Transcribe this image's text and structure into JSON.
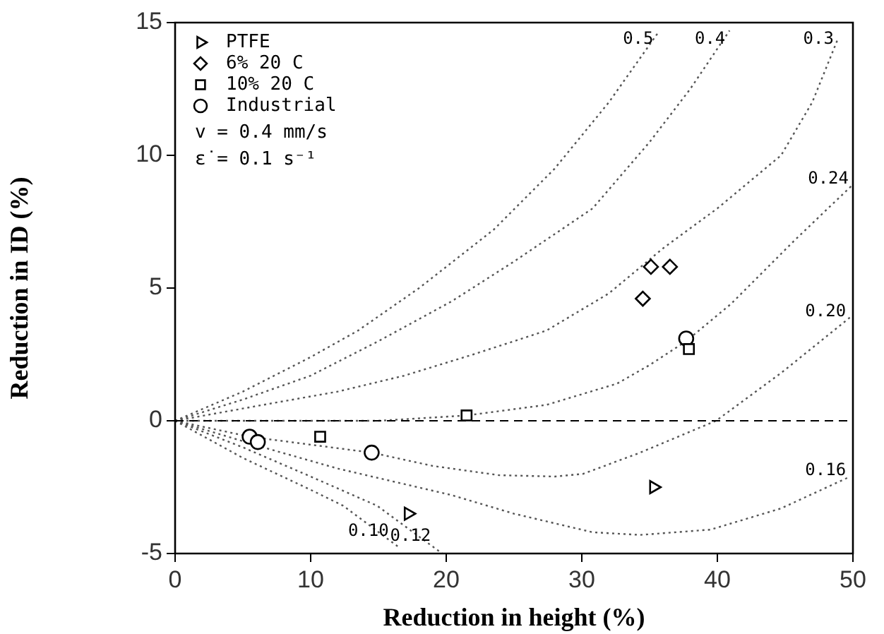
{
  "chart_data": {
    "type": "scatter",
    "xlabel": "Reduction in height (%)",
    "ylabel": "Reduction in ID (%)",
    "xlim": [
      0,
      50
    ],
    "xticks": [
      0,
      10,
      20,
      30,
      40,
      50
    ],
    "ylim": [
      -5,
      15
    ],
    "yticks": [
      -5,
      0,
      5,
      10,
      15
    ],
    "grid": false,
    "legend": "top left",
    "series": [
      {
        "name": "PTFE",
        "color": "#000000",
        "marker": "triangle",
        "x": [
          35.3,
          17.2
        ],
        "values": [
          -2.5,
          -3.5
        ]
      },
      {
        "name": "6% 20 C",
        "color": "#000000",
        "marker": "diamond",
        "x": [
          35.1,
          36.5,
          34.5
        ],
        "values": [
          5.8,
          5.8,
          4.6
        ]
      },
      {
        "name": "10% 20 C",
        "color": "#000000",
        "marker": "square",
        "x": [
          37.9,
          21.5,
          10.7
        ],
        "values": [
          2.7,
          0.2,
          -0.6
        ]
      },
      {
        "name": "Industrial",
        "color": "#000000",
        "marker": "circle",
        "x": [
          37.7,
          5.5,
          6.1,
          14.5
        ],
        "values": [
          3.1,
          -0.6,
          -0.8,
          -1.2
        ]
      },
      {
        "name": "0.5",
        "type": "line",
        "color": "#555555",
        "marker": "none",
        "line_style": "dotted",
        "x": [
          0,
          5,
          10,
          13.5,
          18,
          23.5,
          28,
          32,
          35.6
        ],
        "values": [
          0,
          1.1,
          2.4,
          3.4,
          5,
          7.2,
          9.5,
          12,
          14.6
        ]
      },
      {
        "name": "0.4",
        "type": "line",
        "color": "#555555",
        "marker": "none",
        "line_style": "dotted",
        "x": [
          0,
          5,
          10,
          15,
          20.4,
          25,
          30.8,
          35,
          38,
          40.9
        ],
        "values": [
          0,
          0.8,
          1.7,
          3,
          4.5,
          6,
          8,
          10.5,
          12.5,
          14.7
        ]
      },
      {
        "name": "0.3",
        "type": "line",
        "color": "#555555",
        "marker": "none",
        "line_style": "dotted",
        "x": [
          0,
          6.5,
          12,
          16.9,
          22,
          27.4,
          32,
          36,
          40,
          44.7,
          47,
          48.9
        ],
        "values": [
          0,
          0.6,
          1.1,
          1.7,
          2.5,
          3.4,
          4.8,
          6.5,
          8,
          10,
          12,
          14.4
        ]
      },
      {
        "name": "0.24",
        "type": "line",
        "color": "#555555",
        "marker": "none",
        "line_style": "dotted",
        "x": [
          0,
          10,
          15,
          21.5,
          27.4,
          32.6,
          35,
          37.7,
          41,
          45.7,
          50
        ],
        "values": [
          0,
          0,
          0,
          0.2,
          0.6,
          1.4,
          2.1,
          3,
          4.4,
          6.8,
          8.9
        ]
      },
      {
        "name": "0.20",
        "type": "line",
        "color": "#555555",
        "marker": "none",
        "line_style": "dotted",
        "x": [
          0,
          5.5,
          10,
          14.5,
          19,
          23.9,
          28,
          30.1,
          34.3,
          39.9,
          44.7,
          49.8
        ],
        "values": [
          0,
          -0.6,
          -0.9,
          -1.2,
          -1.7,
          -2.05,
          -2.1,
          -2,
          -1.2,
          0,
          1.8,
          3.9
        ]
      },
      {
        "name": "0.16",
        "type": "line",
        "color": "#555555",
        "marker": "none",
        "line_style": "dotted",
        "x": [
          0,
          6.5,
          12,
          20.4,
          25,
          30.8,
          34.3,
          39.5,
          44.7,
          49.8
        ],
        "values": [
          0,
          -1,
          -1.8,
          -2.8,
          -3.5,
          -4.2,
          -4.3,
          -4.1,
          -3.3,
          -2.1
        ]
      },
      {
        "name": "0.12",
        "type": "line",
        "color": "#555555",
        "marker": "none",
        "line_style": "dotted",
        "x": [
          0,
          5,
          10,
          14.9,
          19.7
        ],
        "values": [
          0,
          -1,
          -2.1,
          -3.2,
          -5
        ]
      },
      {
        "name": "0.10",
        "type": "line",
        "color": "#555555",
        "marker": "none",
        "line_style": "dotted",
        "x": [
          0,
          5,
          10,
          12.4,
          16.6
        ],
        "values": [
          0,
          -1.4,
          -2.6,
          -3.2,
          -4.8
        ]
      }
    ],
    "ref_lines": [
      {
        "axis": "y",
        "value": 0,
        "line_style": "dashed",
        "color": "#000000"
      }
    ],
    "annotations": [
      "v = 0.4 mm/s",
      "ε̇ = 0.1 s⁻¹"
    ]
  }
}
